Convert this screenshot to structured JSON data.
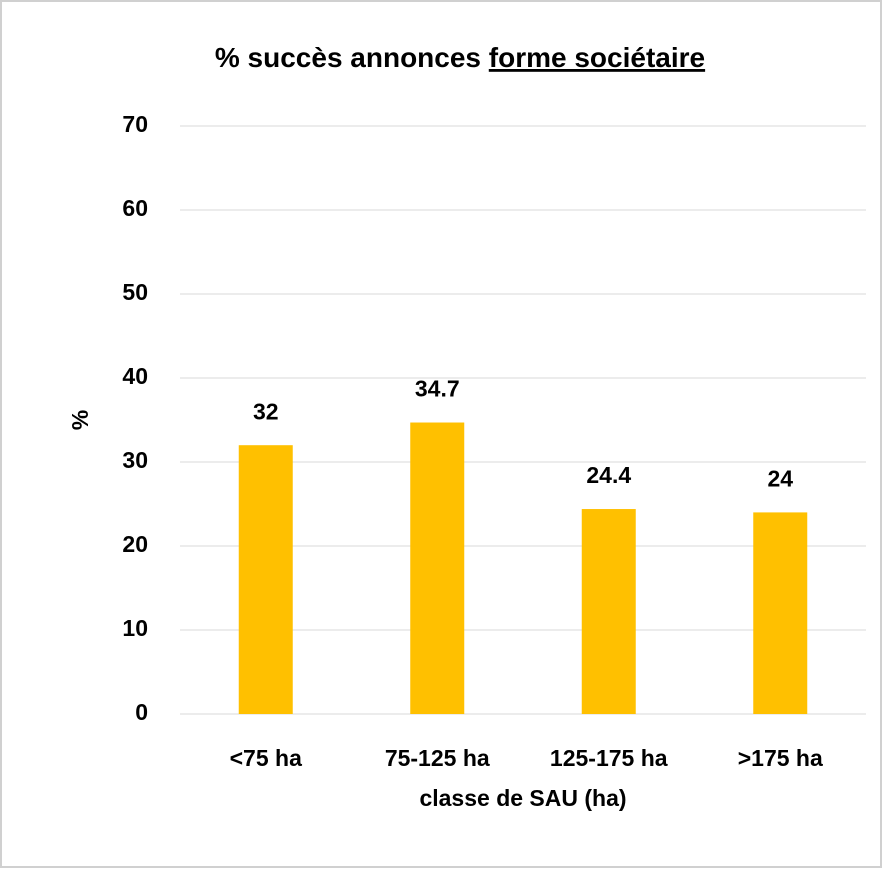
{
  "chart_data": {
    "type": "bar",
    "title": "% succès annonces",
    "title_underlined": "forme sociétaire",
    "x_label": "classe de SAU (ha)",
    "y_label": "%",
    "categories": [
      "<75 ha",
      "75-125 ha",
      "125-175 ha",
      ">175 ha"
    ],
    "values": [
      32,
      34.7,
      24.4,
      24
    ],
    "color": "#ffc000",
    "ylim": [
      0,
      70
    ],
    "yticks": [
      0,
      10,
      20,
      30,
      40,
      50,
      60,
      70
    ],
    "grid": true
  }
}
